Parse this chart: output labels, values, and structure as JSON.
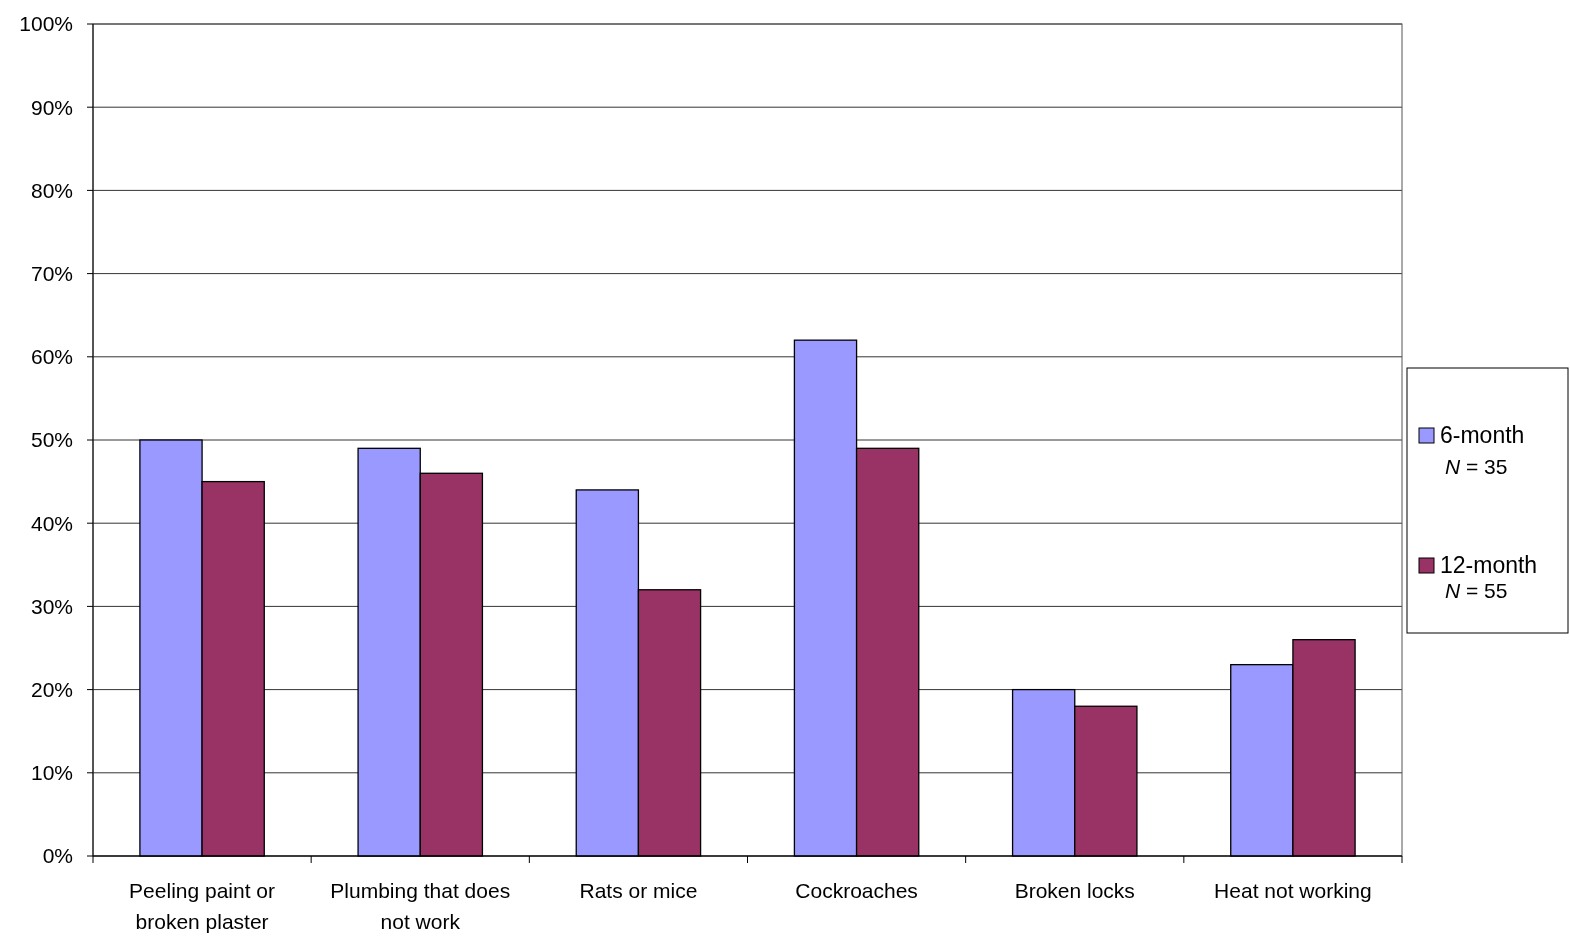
{
  "chart_data": {
    "type": "bar",
    "categories": [
      "Peeling paint or broken plaster",
      "Plumbing that does not work",
      "Rats or mice",
      "Cockroaches",
      "Broken locks",
      "Heat not working"
    ],
    "series": [
      {
        "name": "6-month",
        "color": "#9999ff",
        "values": [
          50,
          49,
          44,
          62,
          20,
          23
        ]
      },
      {
        "name": "12-month",
        "color": "#993366",
        "values": [
          45,
          46,
          32,
          49,
          18,
          26
        ]
      }
    ],
    "ylim": [
      0,
      100
    ],
    "yticks": [
      {
        "value": 0,
        "label": "0%"
      },
      {
        "value": 10,
        "label": "10%"
      },
      {
        "value": 20,
        "label": "20%"
      },
      {
        "value": 30,
        "label": "30%"
      },
      {
        "value": 40,
        "label": "40%"
      },
      {
        "value": 50,
        "label": "50%"
      },
      {
        "value": 60,
        "label": "60%"
      },
      {
        "value": 70,
        "label": "70%"
      },
      {
        "value": 80,
        "label": "80%"
      },
      {
        "value": 90,
        "label": "90%"
      },
      {
        "value": 100,
        "label": "100%"
      }
    ],
    "grid": "y",
    "legend": "right",
    "annotations": [
      "N = 35",
      "N = 55"
    ]
  }
}
